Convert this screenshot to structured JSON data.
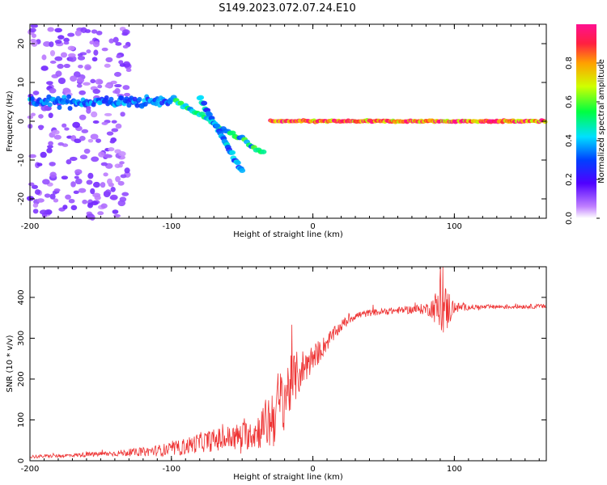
{
  "figure_title": "S149.2023.072.07.24.E10",
  "colors": {
    "snr_line": "#ee3333",
    "axis": "#000000",
    "spectral_low": "#c080ff",
    "spectral_mid": "#5000ff",
    "spectral_high": "#ff3050"
  },
  "chart_data": [
    {
      "type": "heatmap",
      "xlabel": "Height of straight line (km)",
      "ylabel": "Frequency (Hz)",
      "xlim": [
        -200,
        165
      ],
      "ylim": [
        -25,
        25
      ],
      "x_ticks": [
        -200,
        -100,
        0,
        100
      ],
      "y_ticks": [
        -20,
        -10,
        0,
        10,
        20
      ],
      "grid": false,
      "colorbar": {
        "label": "Normalized spectral amplitude",
        "ticks": [
          "0.0",
          "0.2",
          "0.4",
          "0.6",
          "0.8"
        ],
        "range": [
          0,
          1
        ],
        "colormap": "rainbow (purple to red)"
      },
      "features": [
        {
          "name": "scattered weak returns",
          "x_range": [
            -200,
            -130
          ],
          "freq_range": [
            -25,
            25
          ],
          "amplitude": 0.1
        },
        {
          "name": "main band",
          "x_range": [
            -200,
            -100
          ],
          "freq_center": 5,
          "amplitude": 0.35
        },
        {
          "name": "descending trace",
          "x_from": -100,
          "freq_from": 6,
          "x_to": -35,
          "freq_to": -8,
          "amplitude": 0.5
        },
        {
          "name": "second descending trace",
          "x_from": -80,
          "freq_from": 6,
          "x_to": -50,
          "freq_to": -13,
          "amplitude": 0.4
        },
        {
          "name": "zero-Doppler line",
          "x_range": [
            -30,
            165
          ],
          "freq_center": 0,
          "amplitude": 0.9
        }
      ]
    },
    {
      "type": "line",
      "xlabel": "Height of straight line (km)",
      "ylabel": "SNR (10 * v/v)",
      "xlim": [
        -200,
        165
      ],
      "ylim": [
        0,
        475
      ],
      "x_ticks": [
        -200,
        -100,
        0,
        100
      ],
      "y_ticks": [
        0,
        100,
        200,
        300,
        400
      ],
      "grid": false,
      "series": [
        {
          "x": [
            -200,
            -180,
            -160,
            -140,
            -120,
            -100,
            -90,
            -80,
            -70,
            -60,
            -50,
            -40,
            -35,
            -30,
            -25,
            -20,
            -15,
            -10,
            -5,
            0,
            5,
            10,
            15,
            20,
            25,
            30,
            40,
            50,
            60,
            70,
            80,
            85,
            90,
            95,
            100,
            110,
            120,
            130,
            140,
            150,
            160,
            165
          ],
          "y": [
            10,
            12,
            15,
            18,
            22,
            28,
            35,
            45,
            50,
            55,
            60,
            70,
            85,
            100,
            130,
            160,
            190,
            215,
            235,
            250,
            270,
            290,
            310,
            330,
            345,
            355,
            362,
            365,
            368,
            370,
            372,
            375,
            370,
            372,
            375,
            376,
            376,
            377,
            377,
            378,
            378,
            378
          ],
          "spread": [
            6,
            6,
            8,
            10,
            15,
            25,
            30,
            35,
            40,
            45,
            50,
            60,
            80,
            110,
            130,
            120,
            100,
            80,
            60,
            50,
            40,
            30,
            25,
            20,
            18,
            15,
            12,
            12,
            12,
            15,
            20,
            40,
            100,
            80,
            20,
            10,
            8,
            8,
            8,
            8,
            8,
            8
          ]
        }
      ]
    }
  ]
}
